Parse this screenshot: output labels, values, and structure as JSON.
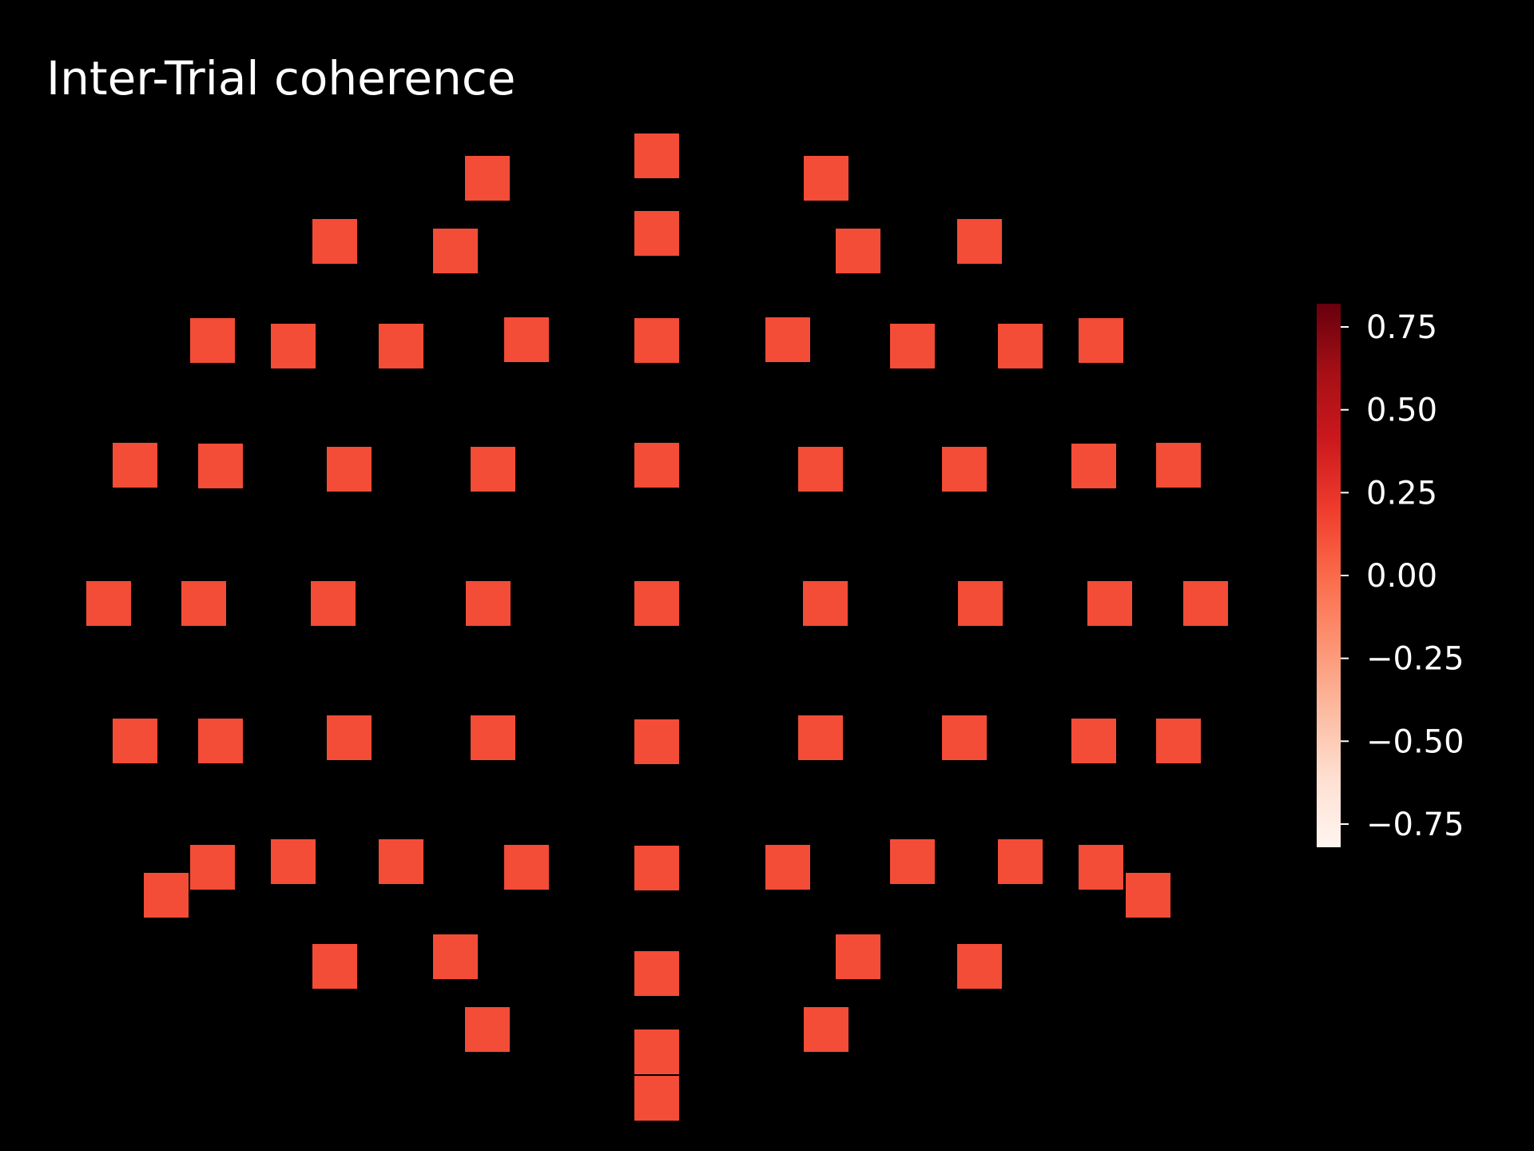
{
  "chart_data": {
    "type": "heatmap",
    "title": "Inter-Trial coherence",
    "colormap": "Reds",
    "colormap_stops": [
      "#fff5f0",
      "#fee0d2",
      "#fcbba1",
      "#fc9272",
      "#fb6a4a",
      "#ef3b2c",
      "#cb181d",
      "#a50f15",
      "#67000d"
    ],
    "clim": [
      -0.82,
      0.82
    ],
    "colorbar": {
      "placement": "right",
      "ticks": [
        0.75,
        0.5,
        0.25,
        0.0,
        -0.25,
        -0.5,
        -0.75
      ],
      "tick_labels": [
        "0.75",
        "0.50",
        "0.25",
        "0.00",
        "−0.25",
        "−0.50",
        "−0.75"
      ]
    },
    "channel_value": 0.13,
    "channel_count": 64,
    "grid": false
  }
}
